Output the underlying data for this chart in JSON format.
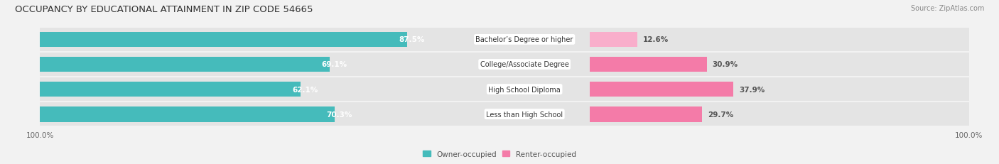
{
  "title": "OCCUPANCY BY EDUCATIONAL ATTAINMENT IN ZIP CODE 54665",
  "source": "Source: ZipAtlas.com",
  "categories": [
    "Less than High School",
    "High School Diploma",
    "College/Associate Degree",
    "Bachelor’s Degree or higher"
  ],
  "owner_pct": [
    70.3,
    62.1,
    69.1,
    87.5
  ],
  "renter_pct": [
    29.7,
    37.9,
    30.9,
    12.6
  ],
  "owner_color": "#45BBBB",
  "renter_color_dark": "#F47BA8",
  "renter_color_light": "#F9AECB",
  "background_color": "#F2F2F2",
  "row_bg_color": "#E4E4E4",
  "title_fontsize": 9.5,
  "source_fontsize": 7,
  "label_fontsize": 7.5,
  "tick_fontsize": 7.5,
  "legend_fontsize": 7.5,
  "bar_height": 0.62
}
